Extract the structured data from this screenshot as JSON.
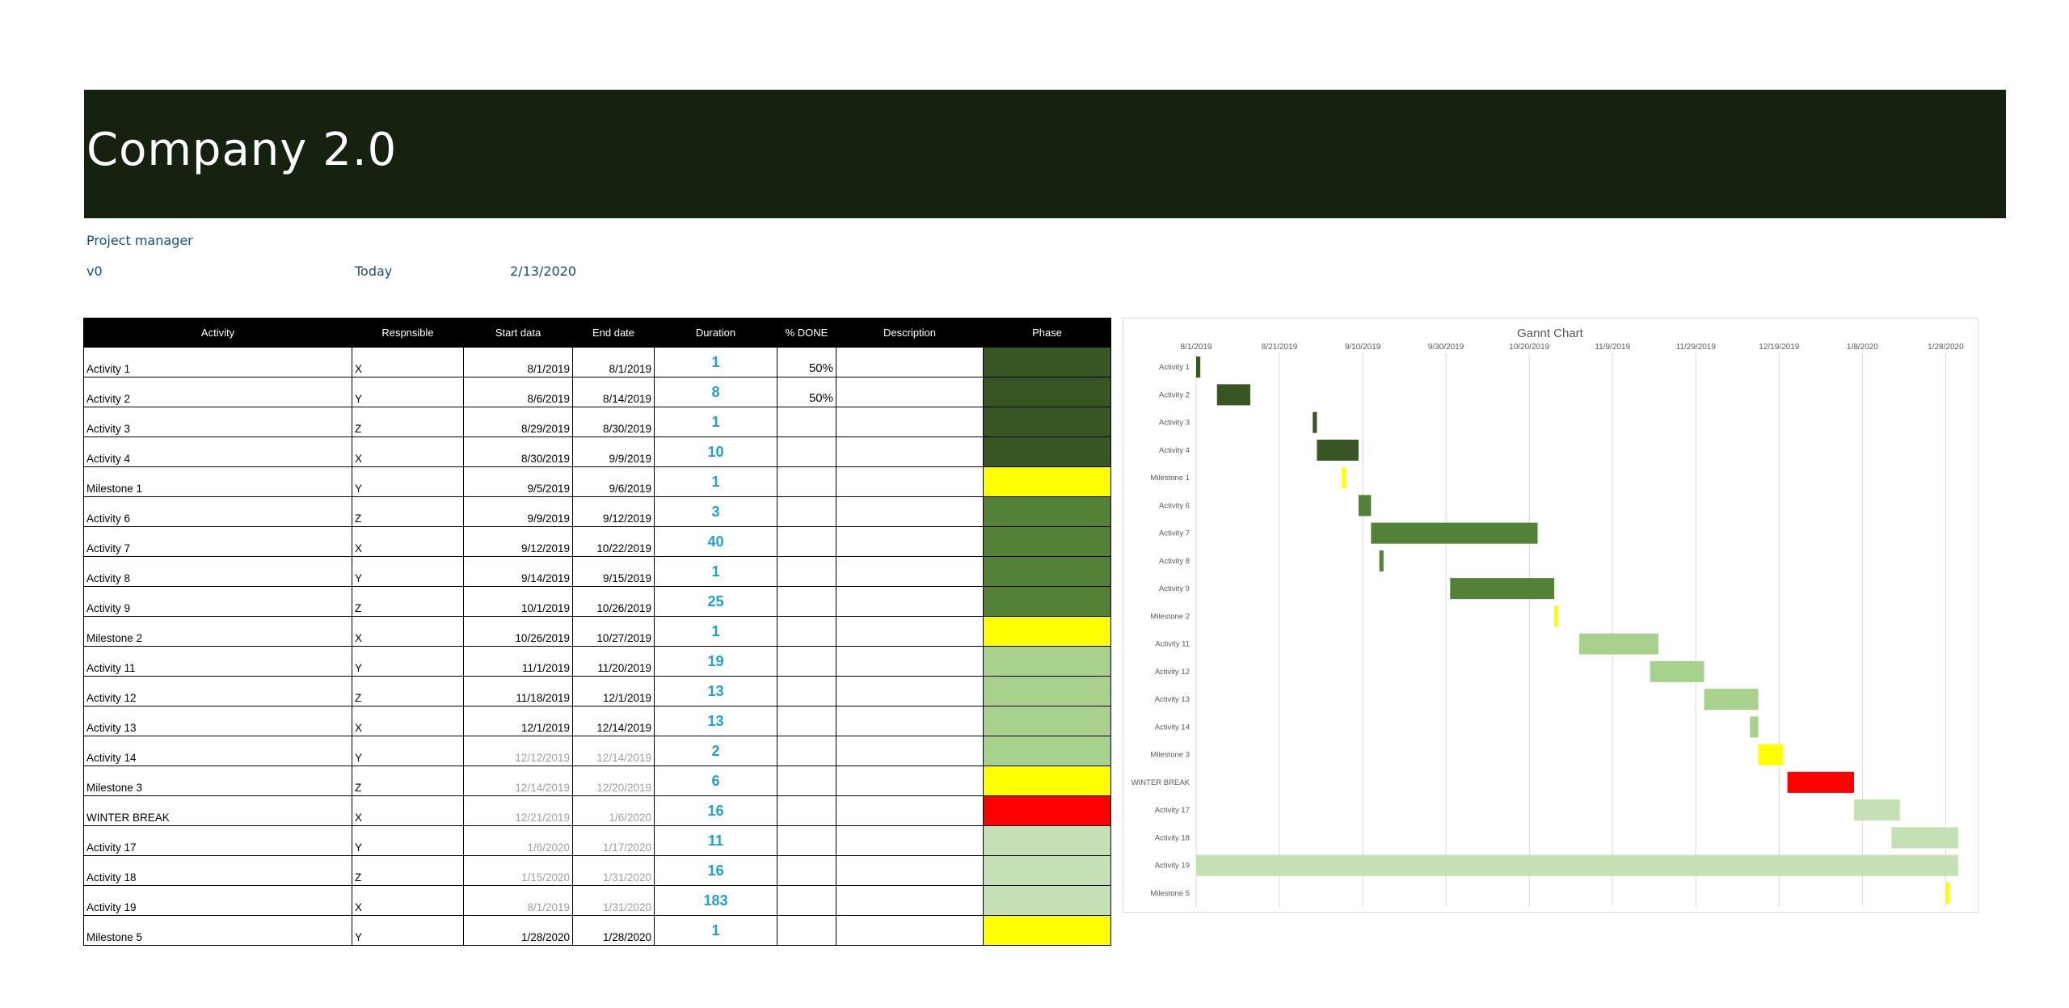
{
  "header": {
    "title": "Company 2.0"
  },
  "meta": {
    "project_manager_label": "Project manager",
    "version": "v0",
    "today_label": "Today",
    "today_value": "2/13/2020"
  },
  "table": {
    "columns": [
      "Activity",
      "Respnsible",
      "Start data",
      "End date",
      "Duration",
      "% DONE",
      "Description",
      "Phase"
    ],
    "rows": [
      {
        "activity": "Activity 1",
        "resp": "X",
        "start": "8/1/2019",
        "end": "8/1/2019",
        "duration": "1",
        "done": "50%",
        "desc": "",
        "phase_color": "#375623",
        "gray": false
      },
      {
        "activity": "Activity 2",
        "resp": "Y",
        "start": "8/6/2019",
        "end": "8/14/2019",
        "duration": "8",
        "done": "50%",
        "desc": "",
        "phase_color": "#375623",
        "gray": false
      },
      {
        "activity": "Activity 3",
        "resp": "Z",
        "start": "8/29/2019",
        "end": "8/30/2019",
        "duration": "1",
        "done": "",
        "desc": "",
        "phase_color": "#375623",
        "gray": false
      },
      {
        "activity": "Activity 4",
        "resp": "X",
        "start": "8/30/2019",
        "end": "9/9/2019",
        "duration": "10",
        "done": "",
        "desc": "",
        "phase_color": "#375623",
        "gray": false
      },
      {
        "activity": "Milestone 1",
        "resp": "Y",
        "start": "9/5/2019",
        "end": "9/6/2019",
        "duration": "1",
        "done": "",
        "desc": "",
        "phase_color": "#ffff00",
        "gray": false
      },
      {
        "activity": "Activity 6",
        "resp": "Z",
        "start": "9/9/2019",
        "end": "9/12/2019",
        "duration": "3",
        "done": "",
        "desc": "",
        "phase_color": "#538135",
        "gray": false
      },
      {
        "activity": "Activity 7",
        "resp": "X",
        "start": "9/12/2019",
        "end": "10/22/2019",
        "duration": "40",
        "done": "",
        "desc": "",
        "phase_color": "#538135",
        "gray": false
      },
      {
        "activity": "Activity 8",
        "resp": "Y",
        "start": "9/14/2019",
        "end": "9/15/2019",
        "duration": "1",
        "done": "",
        "desc": "",
        "phase_color": "#538135",
        "gray": false
      },
      {
        "activity": "Activity 9",
        "resp": "Z",
        "start": "10/1/2019",
        "end": "10/26/2019",
        "duration": "25",
        "done": "",
        "desc": "",
        "phase_color": "#538135",
        "gray": false
      },
      {
        "activity": "Milestone 2",
        "resp": "X",
        "start": "10/26/2019",
        "end": "10/27/2019",
        "duration": "1",
        "done": "",
        "desc": "",
        "phase_color": "#ffff00",
        "gray": false
      },
      {
        "activity": "Activity 11",
        "resp": "Y",
        "start": "11/1/2019",
        "end": "11/20/2019",
        "duration": "19",
        "done": "",
        "desc": "",
        "phase_color": "#a9d18e",
        "gray": false
      },
      {
        "activity": "Activity 12",
        "resp": "Z",
        "start": "11/18/2019",
        "end": "12/1/2019",
        "duration": "13",
        "done": "",
        "desc": "",
        "phase_color": "#a9d18e",
        "gray": false
      },
      {
        "activity": "Activity 13",
        "resp": "X",
        "start": "12/1/2019",
        "end": "12/14/2019",
        "duration": "13",
        "done": "",
        "desc": "",
        "phase_color": "#a9d18e",
        "gray": false
      },
      {
        "activity": "Activity 14",
        "resp": "Y",
        "start": "12/12/2019",
        "end": "12/14/2019",
        "duration": "2",
        "done": "",
        "desc": "",
        "phase_color": "#a9d18e",
        "gray": true
      },
      {
        "activity": "Milestone 3",
        "resp": "Z",
        "start": "12/14/2019",
        "end": "12/20/2019",
        "duration": "6",
        "done": "",
        "desc": "",
        "phase_color": "#ffff00",
        "gray": true
      },
      {
        "activity": "WINTER BREAK",
        "resp": "X",
        "start": "12/21/2019",
        "end": "1/6/2020",
        "duration": "16",
        "done": "",
        "desc": "",
        "phase_color": "#ff0000",
        "gray": true
      },
      {
        "activity": "Activity 17",
        "resp": "Y",
        "start": "1/6/2020",
        "end": "1/17/2020",
        "duration": "11",
        "done": "",
        "desc": "",
        "phase_color": "#c5e0b4",
        "gray": true
      },
      {
        "activity": "Activity 18",
        "resp": "Z",
        "start": "1/15/2020",
        "end": "1/31/2020",
        "duration": "16",
        "done": "",
        "desc": "",
        "phase_color": "#c5e0b4",
        "gray": true
      },
      {
        "activity": "Activity 19",
        "resp": "X",
        "start": "8/1/2019",
        "end": "1/31/2020",
        "duration": "183",
        "done": "",
        "desc": "",
        "phase_color": "#c5e0b4",
        "gray": true
      },
      {
        "activity": "Milestone 5",
        "resp": "Y",
        "start": "1/28/2020",
        "end": "1/28/2020",
        "duration": "1",
        "done": "",
        "desc": "",
        "phase_color": "#ffff00",
        "gray": false
      }
    ]
  },
  "chart_data": {
    "type": "bar",
    "orientation": "horizontal",
    "stacked": "gantt",
    "title": "Gannt Chart",
    "x_tick_labels": [
      "8/1/2019",
      "8/21/2019",
      "9/10/2019",
      "9/30/2019",
      "10/20/2019",
      "11/9/2019",
      "11/29/2019",
      "12/19/2019",
      "1/8/2020",
      "1/28/2020"
    ],
    "xlim": [
      "8/1/2019",
      "2/1/2020"
    ],
    "axis_position": "top",
    "grid": true,
    "categories": [
      "Activity 1",
      "Activity 2",
      "Activity 3",
      "Activity 4",
      "Milestone 1",
      "Activity 6",
      "Activity 7",
      "Activity 8",
      "Activity 9",
      "Milestone 2",
      "Activity 11",
      "Activity 12",
      "Activity 13",
      "Activity 14",
      "Milestone 3",
      "WINTER BREAK",
      "Activity 17",
      "Activity 18",
      "Activity 19",
      "Milestone 5"
    ],
    "start_dates": [
      "2019-08-01",
      "2019-08-06",
      "2019-08-29",
      "2019-08-30",
      "2019-09-05",
      "2019-09-09",
      "2019-09-12",
      "2019-09-14",
      "2019-10-01",
      "2019-10-26",
      "2019-11-01",
      "2019-11-18",
      "2019-12-01",
      "2019-12-12",
      "2019-12-14",
      "2019-12-21",
      "2020-01-06",
      "2020-01-15",
      "2019-08-01",
      "2020-01-28"
    ],
    "durations_days": [
      1,
      8,
      1,
      10,
      1,
      3,
      40,
      1,
      25,
      1,
      19,
      13,
      13,
      2,
      6,
      16,
      11,
      16,
      183,
      1
    ],
    "colors": [
      "#375623",
      "#375623",
      "#375623",
      "#375623",
      "#ffff00",
      "#538135",
      "#538135",
      "#538135",
      "#538135",
      "#ffff00",
      "#a9d18e",
      "#a9d18e",
      "#a9d18e",
      "#a9d18e",
      "#ffff00",
      "#ff0000",
      "#c5e0b4",
      "#c5e0b4",
      "#c5e0b4",
      "#ffff00"
    ]
  }
}
